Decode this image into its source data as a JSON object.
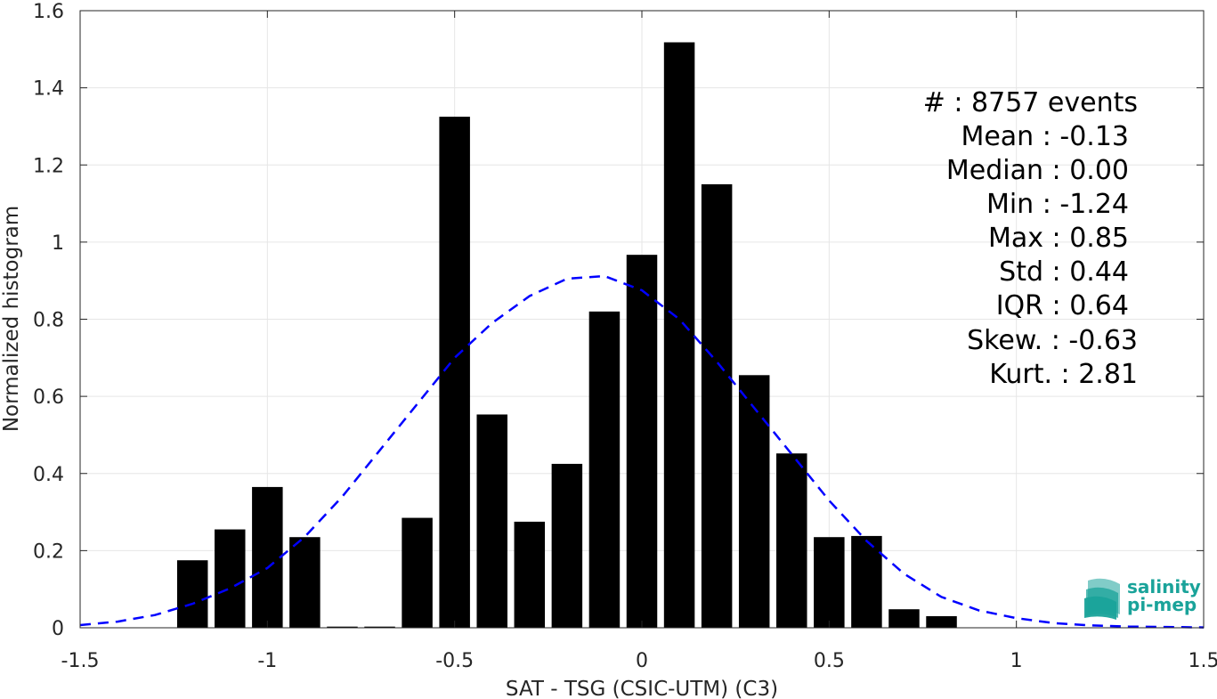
{
  "chart_data": {
    "type": "bar",
    "title": "",
    "xlabel": "SAT - TSG (CSIC-UTM) (C3)",
    "ylabel": "Normalized histogram",
    "xlim": [
      -1.5,
      1.5
    ],
    "ylim": [
      0,
      1.6
    ],
    "xticks": [
      -1.5,
      -1,
      -0.5,
      0,
      0.5,
      1,
      1.5
    ],
    "xtick_labels": [
      "-1.5",
      "-1",
      "-0.5",
      "0",
      "0.5",
      "1",
      "1.5"
    ],
    "yticks": [
      0,
      0.2,
      0.4,
      0.6,
      0.8,
      1,
      1.2,
      1.4,
      1.6
    ],
    "ytick_labels": [
      "0",
      "0.2",
      "0.4",
      "0.6",
      "0.8",
      "1",
      "1.2",
      "1.4",
      "1.6"
    ],
    "grid": true,
    "bin_width": 0.1,
    "bars": {
      "color": "#000000",
      "centers": [
        -1.2,
        -1.1,
        -1.0,
        -0.9,
        -0.8,
        -0.7,
        -0.6,
        -0.5,
        -0.4,
        -0.3,
        -0.2,
        -0.1,
        0.0,
        0.1,
        0.2,
        0.3,
        0.4,
        0.5,
        0.6,
        0.7,
        0.8
      ],
      "values": [
        0.175,
        0.255,
        0.365,
        0.235,
        0.003,
        0.003,
        0.285,
        1.325,
        0.553,
        0.275,
        0.425,
        0.82,
        0.967,
        1.518,
        1.15,
        0.655,
        0.452,
        0.235,
        0.238,
        0.048,
        0.03
      ]
    },
    "fit_curve": {
      "color": "#0000ff",
      "style": "dashed",
      "x": [
        -1.5,
        -1.4,
        -1.3,
        -1.2,
        -1.1,
        -1.0,
        -0.9,
        -0.8,
        -0.7,
        -0.6,
        -0.5,
        -0.4,
        -0.3,
        -0.2,
        -0.1,
        0.0,
        0.1,
        0.2,
        0.3,
        0.4,
        0.5,
        0.6,
        0.7,
        0.8,
        0.9,
        1.0,
        1.1,
        1.2,
        1.3,
        1.4,
        1.5
      ],
      "y": [
        0.007,
        0.016,
        0.033,
        0.062,
        0.102,
        0.155,
        0.236,
        0.34,
        0.46,
        0.58,
        0.7,
        0.79,
        0.86,
        0.905,
        0.912,
        0.875,
        0.8,
        0.69,
        0.57,
        0.45,
        0.33,
        0.225,
        0.14,
        0.08,
        0.045,
        0.025,
        0.012,
        0.006,
        0.003,
        0.002,
        0.001
      ]
    },
    "stats": [
      "#  : 8757 events",
      "Mean : -0.13",
      "Median : 0.00",
      "Min : -1.24",
      "Max : 0.85",
      "Std : 0.44",
      "IQR : 0.64",
      "Skew. : -0.63",
      "Kurt. : 2.81"
    ],
    "logo": {
      "line1": "salinity",
      "line2": "pi-mep",
      "color": "#1aa39a"
    }
  }
}
